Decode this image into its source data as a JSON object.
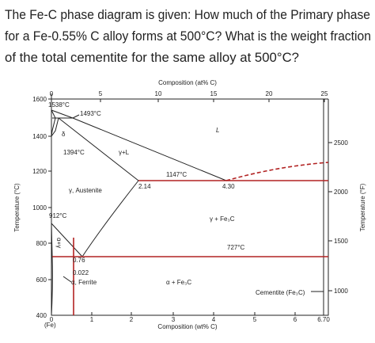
{
  "question": {
    "lines": [
      "The Fe-C phase diagram is given: How much of the Primary phase",
      "for a Fe-0.55% C alloy forms at 500°C? What is the weight fraction",
      "of the total cementite for the same alloy at 500°C?"
    ]
  },
  "diagram": {
    "top_axis": {
      "title": "Composition (at% C)",
      "ticks": [
        "0",
        "5",
        "10",
        "15",
        "20",
        "25"
      ]
    },
    "bottom_axis": {
      "title": "Composition (wt% C)",
      "ticks": [
        "0",
        "1",
        "2",
        "3",
        "4",
        "5",
        "6",
        "6.70"
      ],
      "origin_label": "(Fe)"
    },
    "left_axis": {
      "title": "Temperature (°C)",
      "ticks": [
        "1600",
        "1400",
        "1200",
        "1000",
        "800",
        "600",
        "400"
      ]
    },
    "right_axis": {
      "title": "Temperature (°F)",
      "ticks": [
        "2500",
        "2000",
        "1500",
        "1000"
      ]
    },
    "labels": {
      "t1538": "1538°C",
      "t1493": "1493°C",
      "delta": "δ",
      "t1394": "1394°C",
      "gamma_l": "γ+L",
      "liquid": "L",
      "t1147": "1147°C",
      "c214": "2.14",
      "c430": "4.30",
      "austenite": "γ, Austenite",
      "gamma_fe3c": "γ + Fe₃C",
      "t912": "912°C",
      "t727": "727°C",
      "alpha_gamma": "α+γ",
      "c076": "0.76",
      "c0022": "0.022",
      "ferrite": "α, Ferrite",
      "alpha_fe3c": "α + Fe₃C",
      "cementite": "Cementite (Fe₃C)"
    }
  }
}
